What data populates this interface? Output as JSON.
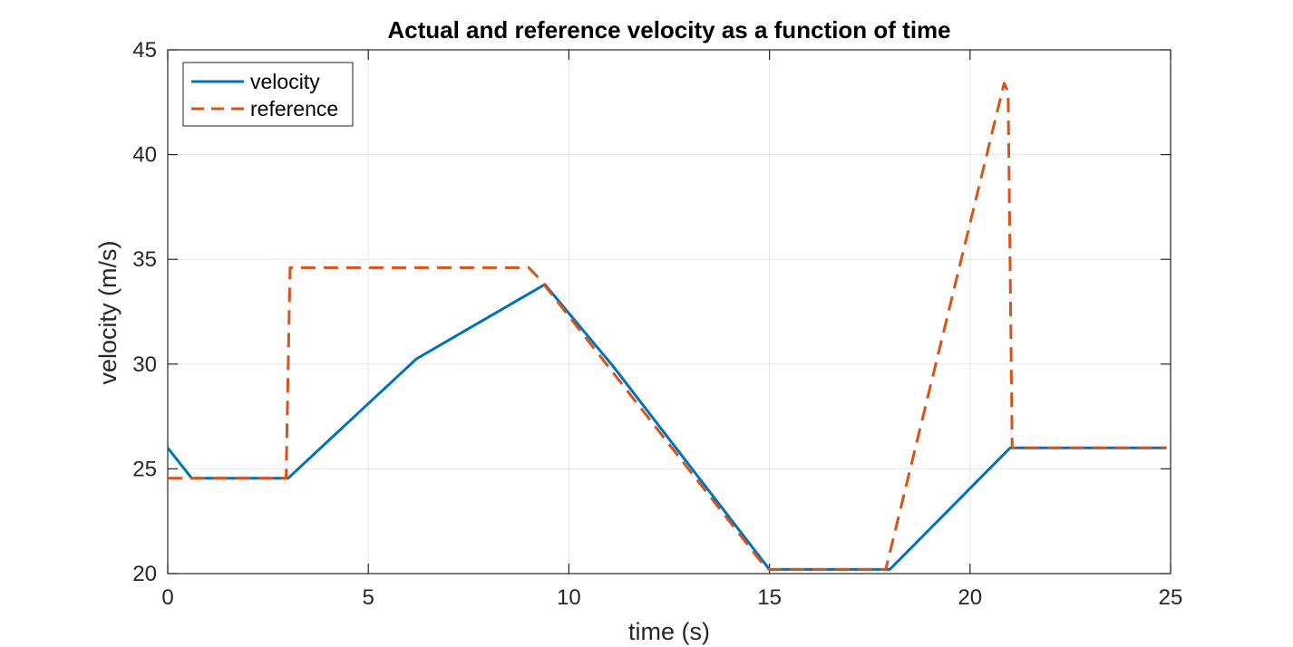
{
  "chart_data": {
    "type": "line",
    "title": "Actual and reference velocity as a function of time",
    "xlabel": "time (s)",
    "ylabel": "velocity (m/s)",
    "xlim": [
      0,
      25
    ],
    "ylim": [
      20,
      45
    ],
    "xticks": [
      0,
      5,
      10,
      15,
      20,
      25
    ],
    "yticks": [
      20,
      25,
      30,
      35,
      40,
      45
    ],
    "grid": true,
    "legend_position": "top-left",
    "series": [
      {
        "name": "velocity",
        "color": "#0072BD",
        "style": "solid",
        "x": [
          0,
          0.6,
          3.0,
          6.2,
          9.4,
          11.1,
          15.0,
          18.0,
          21.0,
          24.9
        ],
        "y": [
          26.0,
          24.55,
          24.55,
          30.25,
          33.8,
          29.9,
          20.2,
          20.2,
          26.0,
          26.0
        ]
      },
      {
        "name": "reference",
        "color": "#D95319",
        "style": "dashed",
        "x": [
          0,
          2.95,
          3.05,
          9.0,
          9.3,
          14.9,
          15.0,
          17.9,
          20.85,
          20.95,
          21.05,
          24.9
        ],
        "y": [
          24.55,
          24.55,
          34.6,
          34.6,
          34.0,
          20.3,
          20.2,
          20.2,
          43.4,
          43.0,
          26.0,
          26.0
        ]
      }
    ]
  }
}
